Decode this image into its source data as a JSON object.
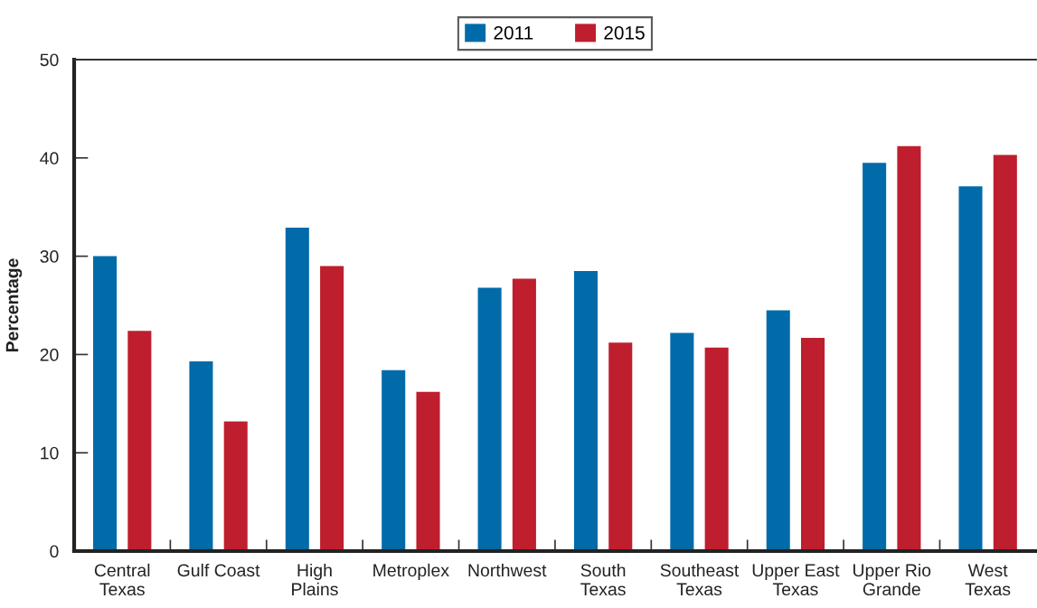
{
  "chart_data": {
    "type": "bar",
    "ylabel": "Percentage",
    "categories": [
      "Central\nTexas",
      "Gulf Coast",
      "High\nPlains",
      "Metroplex",
      "Northwest",
      "South\nTexas",
      "Southeast\nTexas",
      "Upper East\nTexas",
      "Upper Rio\nGrande",
      "West\nTexas"
    ],
    "series": [
      {
        "name": "2011",
        "color": "#016baa",
        "values": [
          30.0,
          19.3,
          32.9,
          18.4,
          26.8,
          28.5,
          22.2,
          24.5,
          39.5,
          37.1
        ]
      },
      {
        "name": "2015",
        "color": "#be1e2d",
        "values": [
          22.4,
          13.2,
          29.0,
          16.2,
          27.7,
          21.2,
          20.7,
          21.7,
          41.2,
          40.3
        ]
      }
    ],
    "ylim": [
      0,
      50
    ],
    "yticks": [
      0,
      10,
      20,
      30,
      40,
      50
    ],
    "grid": false,
    "legend": "top"
  }
}
